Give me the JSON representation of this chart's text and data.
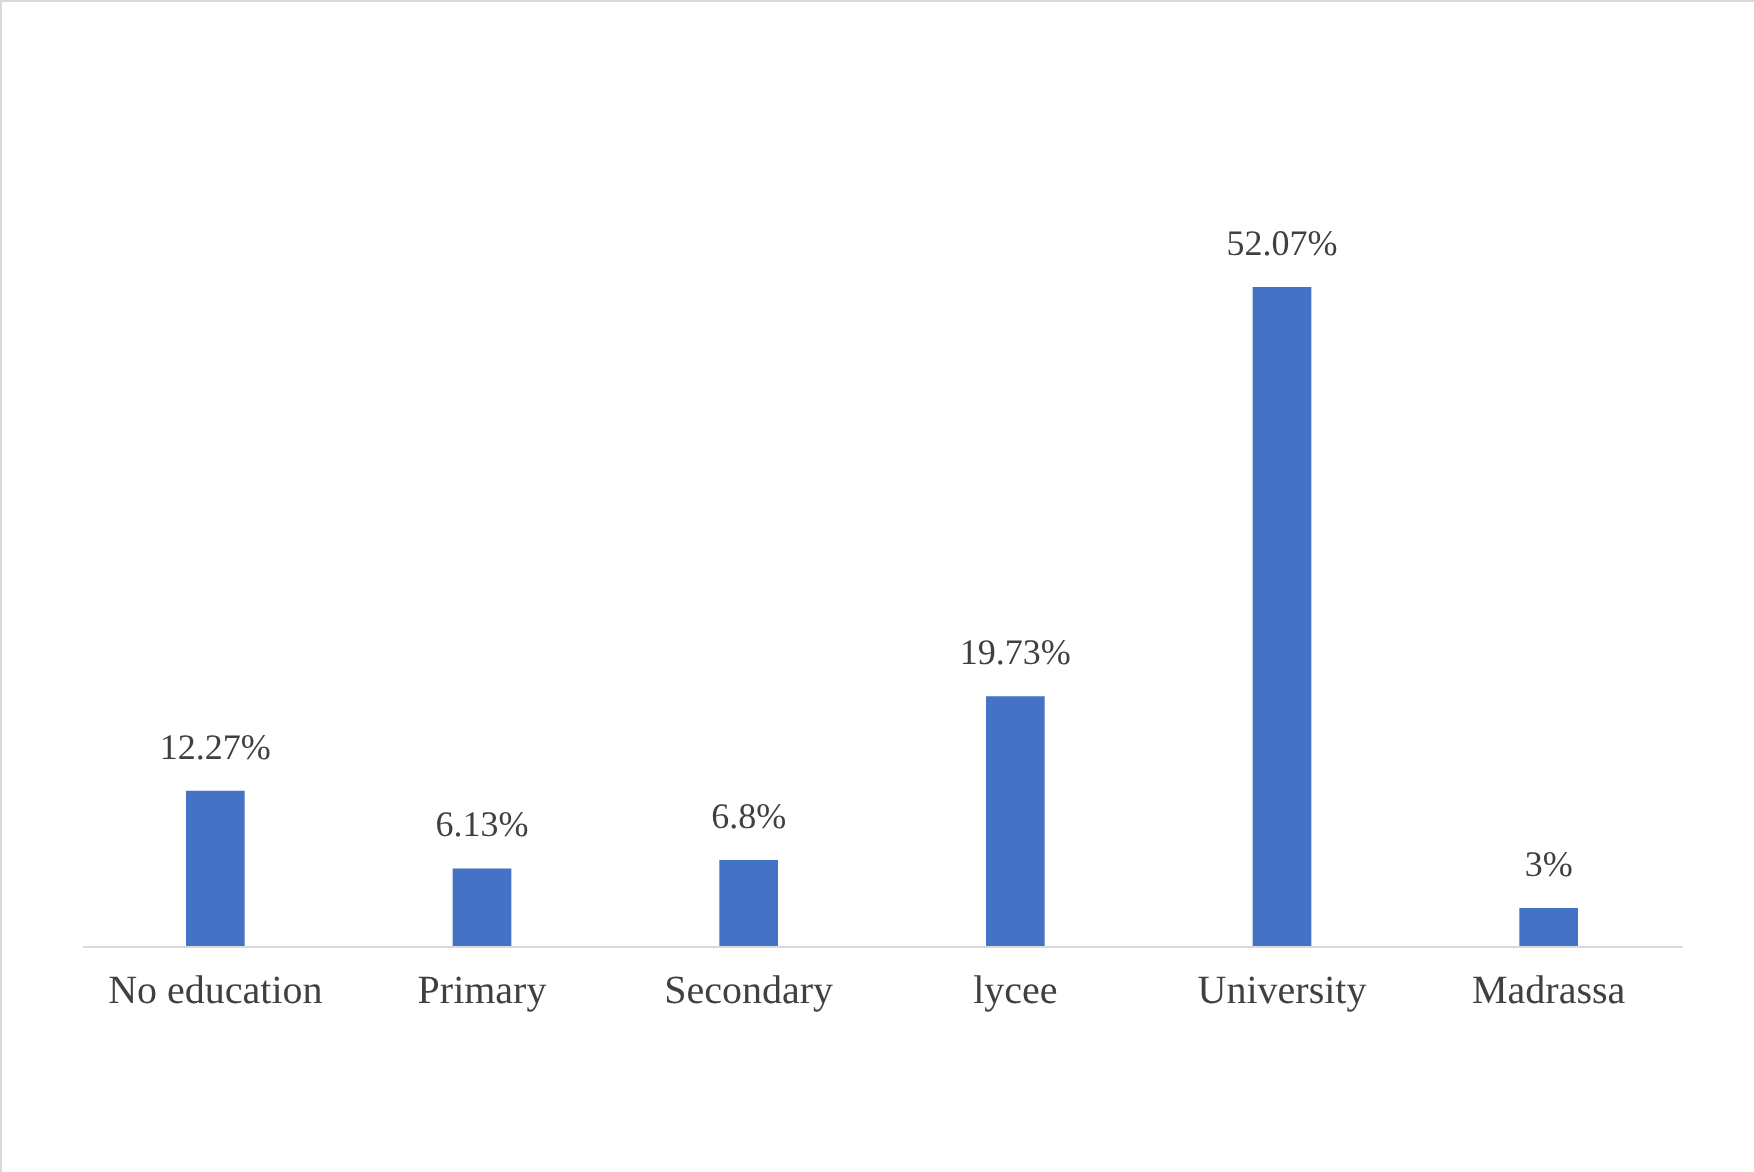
{
  "chart_data": {
    "type": "bar",
    "categories": [
      "No education",
      "Primary",
      "Secondary",
      "lycee",
      "University",
      "Madrassa"
    ],
    "values": [
      12.27,
      6.13,
      6.8,
      19.73,
      52.07,
      3
    ],
    "value_labels": [
      "12.27%",
      "6.13%",
      "6.8%",
      "19.73%",
      "52.07%",
      "3%"
    ],
    "color": "#4472c4"
  }
}
